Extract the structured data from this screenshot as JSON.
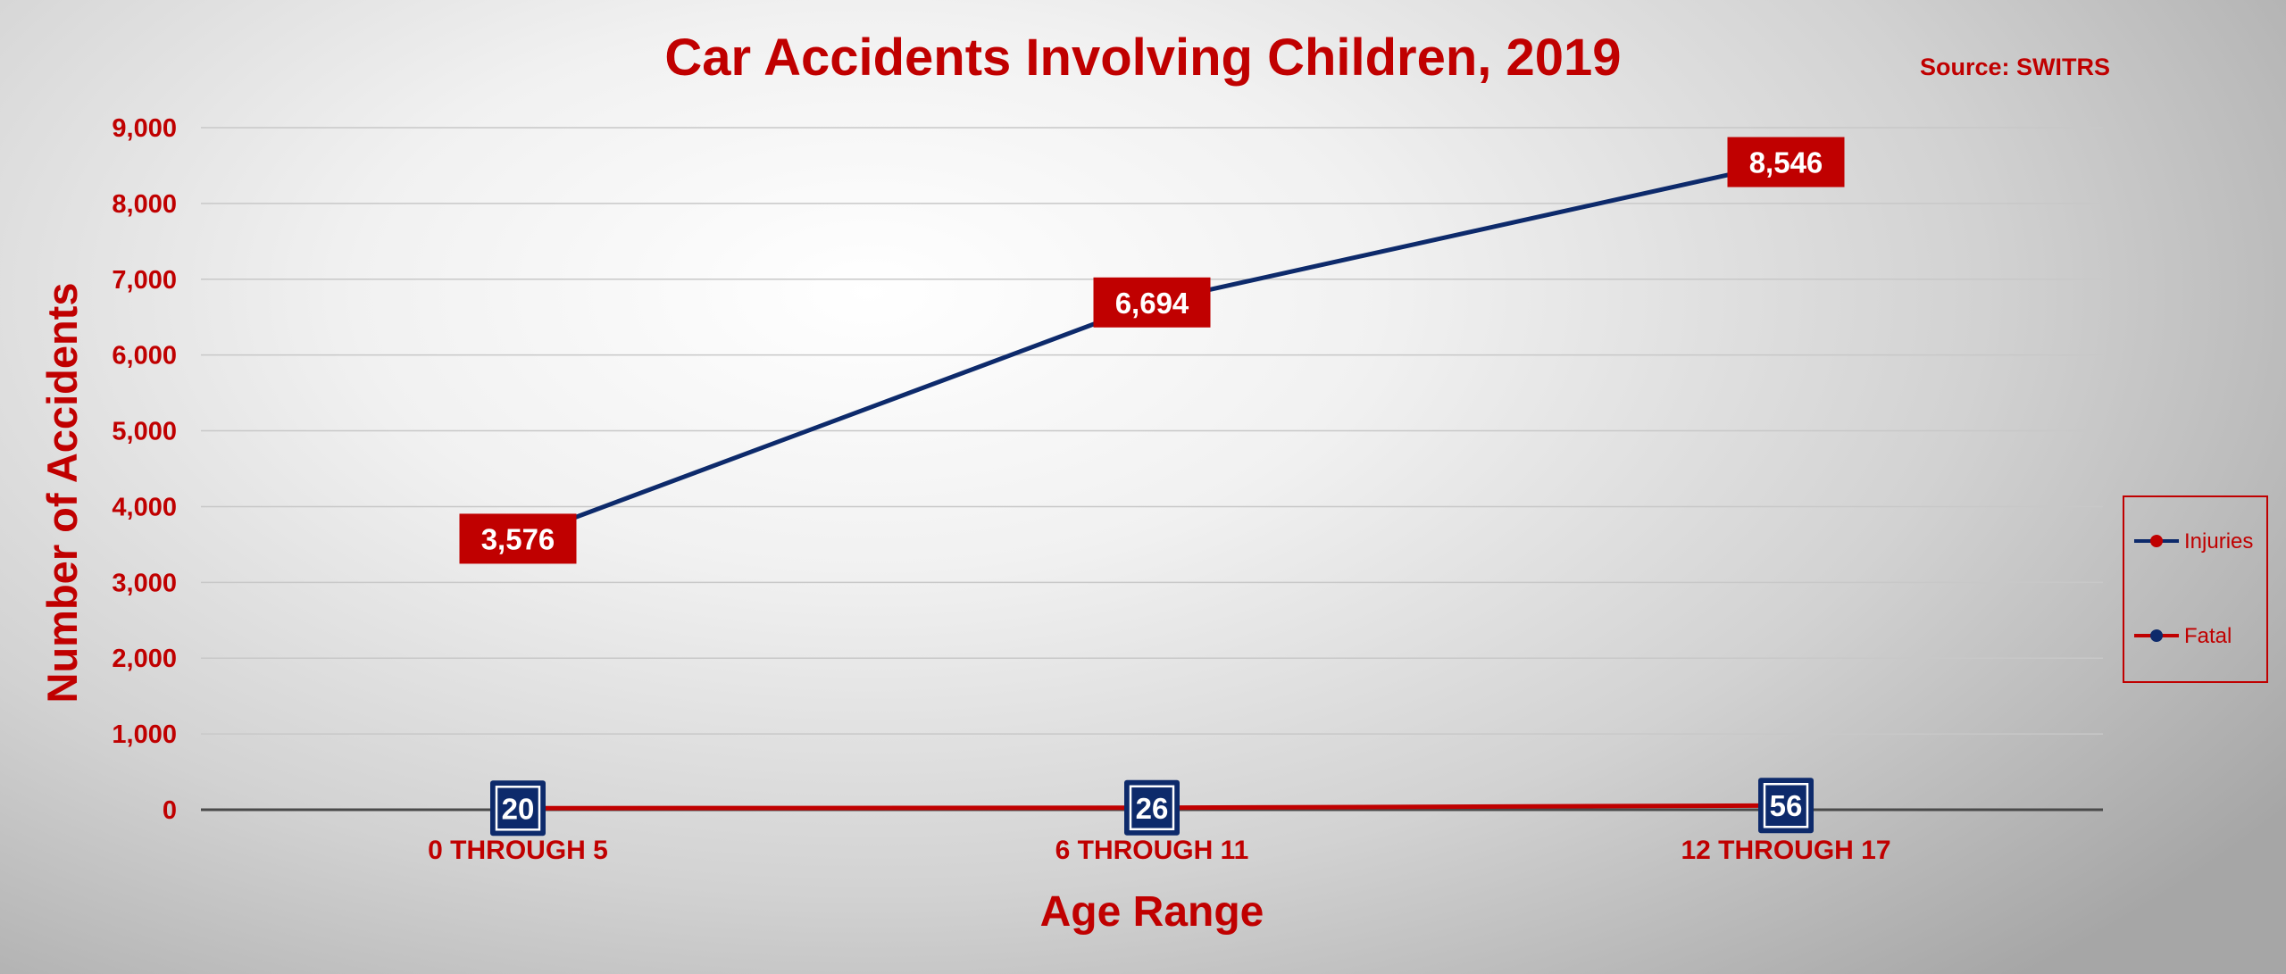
{
  "chart_data": {
    "type": "line",
    "title": "Car Accidents Involving Children, 2019",
    "source": "Source: SWITRS",
    "xlabel": "Age Range",
    "ylabel": "Number of Accidents",
    "categories": [
      "0 THROUGH 5",
      "6 THROUGH 11",
      "12 THROUGH 17"
    ],
    "ylim": [
      0,
      9000
    ],
    "yticks": [
      "0",
      "1,000",
      "2,000",
      "3,000",
      "4,000",
      "5,000",
      "6,000",
      "7,000",
      "8,000",
      "9,000"
    ],
    "grid": true,
    "legend_position": "right",
    "series": [
      {
        "name": "Injuries",
        "values": [
          3576,
          6694,
          8546
        ],
        "labels": [
          "3,576",
          "6,694",
          "8,546"
        ],
        "line_color": "#0d2a6b",
        "marker_color": "#c00000",
        "label_bg": "#c00000"
      },
      {
        "name": "Fatal",
        "values": [
          20,
          26,
          56
        ],
        "labels": [
          "20",
          "26",
          "56"
        ],
        "line_color": "#c00000",
        "marker_color": "#0d2a6b",
        "label_bg": "#0d2a6b"
      }
    ],
    "colors": {
      "text": "#c00000",
      "gridline": "#c8c8c8",
      "axis": "#4a4a4a"
    }
  }
}
